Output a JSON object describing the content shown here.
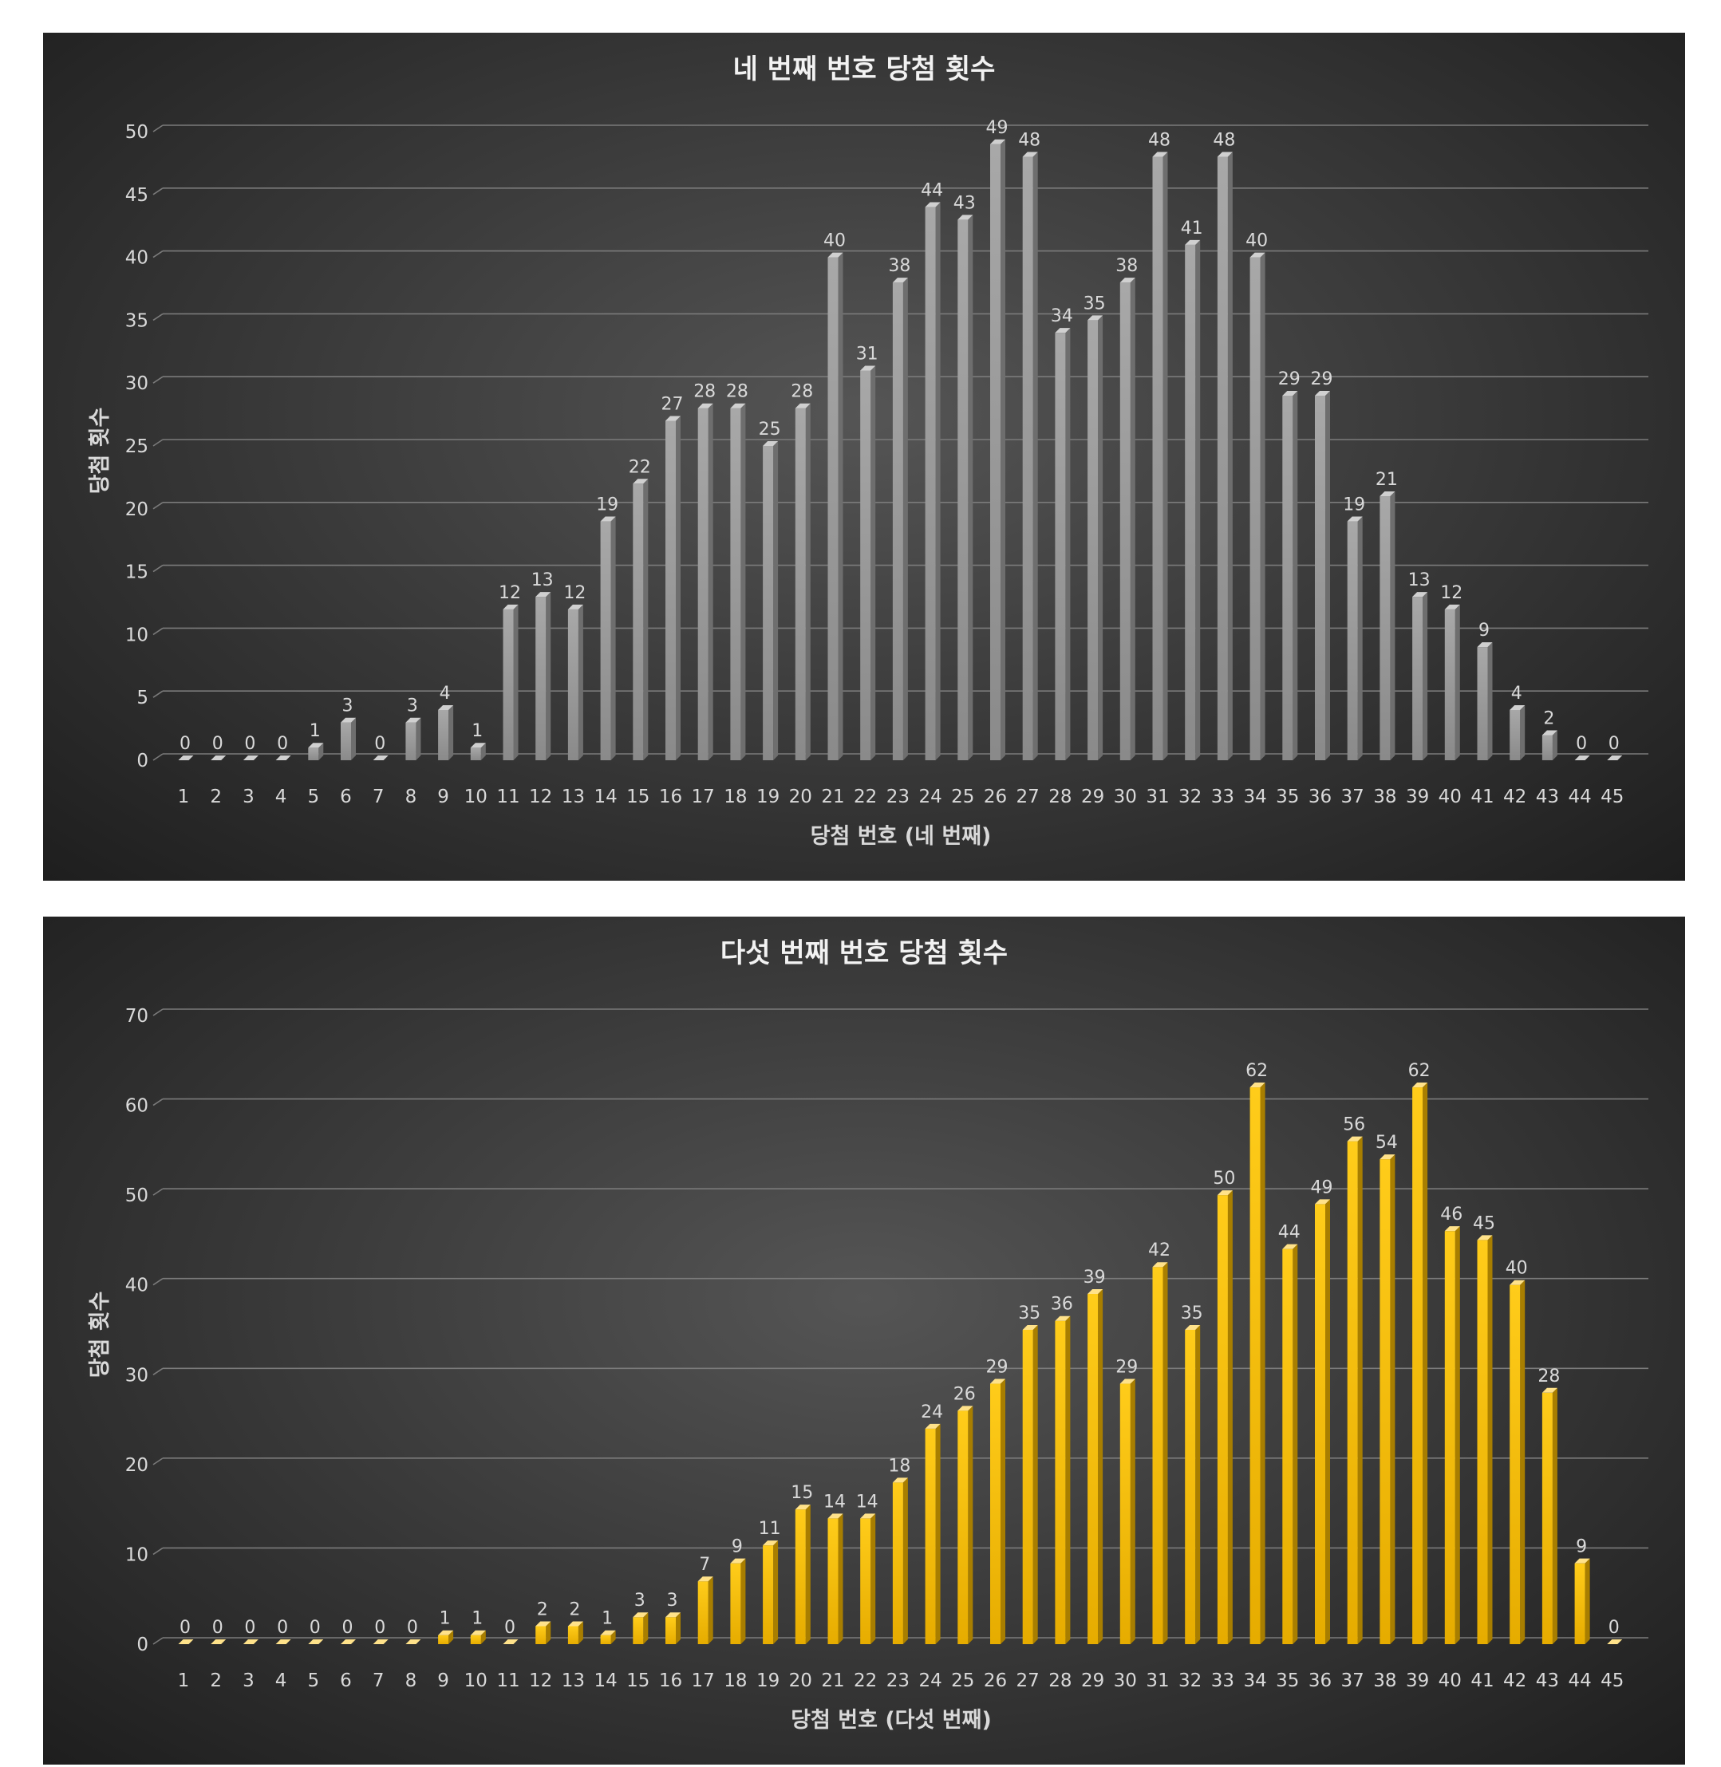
{
  "chart_data": [
    {
      "type": "bar",
      "title": "네 번째 번호 당첨 횟수",
      "xlabel": "당첨 번호 (네 번째)",
      "ylabel": "당첨 횟수",
      "ylim": [
        0,
        50
      ],
      "y_ticks": [
        "0",
        "5",
        "10",
        "15",
        "20",
        "25",
        "30",
        "35",
        "40",
        "45",
        "50"
      ],
      "categories": [
        "1",
        "2",
        "3",
        "4",
        "5",
        "6",
        "7",
        "8",
        "9",
        "10",
        "11",
        "12",
        "13",
        "14",
        "15",
        "16",
        "17",
        "18",
        "19",
        "20",
        "21",
        "22",
        "23",
        "24",
        "25",
        "26",
        "27",
        "28",
        "29",
        "30",
        "31",
        "32",
        "33",
        "34",
        "35",
        "36",
        "37",
        "38",
        "39",
        "40",
        "41",
        "42",
        "43",
        "44",
        "45"
      ],
      "values": [
        0,
        0,
        0,
        0,
        1,
        3,
        0,
        3,
        4,
        1,
        12,
        13,
        12,
        19,
        22,
        27,
        28,
        28,
        25,
        28,
        40,
        31,
        38,
        44,
        43,
        49,
        48,
        34,
        35,
        38,
        48,
        41,
        48,
        40,
        29,
        29,
        19,
        21,
        13,
        12,
        9,
        4,
        2,
        0,
        0
      ],
      "grid": true,
      "legend": "none",
      "colors": {
        "front": "#a8a8a8",
        "front_dark": "#8a8a8a",
        "top": "#d0d0d0",
        "side": "#6e6e6e"
      }
    },
    {
      "type": "bar",
      "title": "다섯 번째 번호 당첨 횟수",
      "xlabel": "당첨 번호 (다섯 번째)",
      "ylabel": "당첨 횟수",
      "ylim": [
        0,
        70
      ],
      "y_ticks": [
        "0",
        "10",
        "20",
        "30",
        "40",
        "50",
        "60",
        "70"
      ],
      "categories": [
        "1",
        "2",
        "3",
        "4",
        "5",
        "6",
        "7",
        "8",
        "9",
        "10",
        "11",
        "12",
        "13",
        "14",
        "15",
        "16",
        "17",
        "18",
        "19",
        "20",
        "21",
        "22",
        "23",
        "24",
        "25",
        "26",
        "27",
        "28",
        "29",
        "30",
        "31",
        "32",
        "33",
        "34",
        "35",
        "36",
        "37",
        "38",
        "39",
        "40",
        "41",
        "42",
        "43",
        "44",
        "45"
      ],
      "values": [
        0,
        0,
        0,
        0,
        0,
        0,
        0,
        0,
        1,
        1,
        0,
        2,
        2,
        1,
        3,
        3,
        7,
        9,
        11,
        15,
        14,
        14,
        18,
        24,
        26,
        29,
        35,
        36,
        39,
        29,
        42,
        35,
        50,
        62,
        44,
        49,
        56,
        54,
        62,
        46,
        45,
        40,
        28,
        9,
        0
      ],
      "grid": true,
      "legend": "none",
      "colors": {
        "front": "#ffcc1a",
        "front_dark": "#e6ac00",
        "top": "#ffe28a",
        "side": "#a87e00"
      }
    }
  ]
}
